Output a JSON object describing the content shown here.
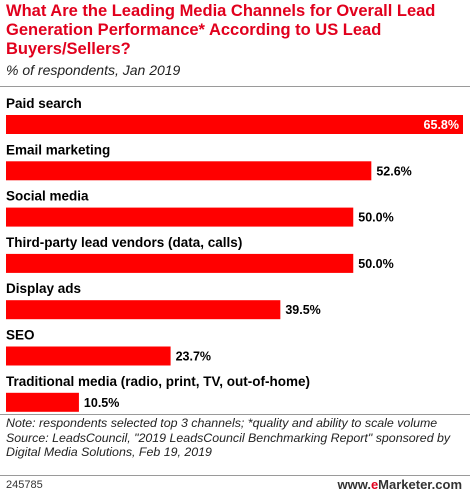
{
  "header": {
    "title": "What Are the Leading Media Channels for Overall Lead Generation Performance* According to US Lead Buyers/Sellers?",
    "subtitle": "% of respondents, Jan 2019"
  },
  "footer": {
    "note": "Note: respondents selected top 3 channels; *quality and ability to scale volume",
    "source": "Source: LeadsCouncil, \"2019 LeadsCouncil Benchmarking Report\" sponsored by Digital Media Solutions, Feb 19, 2019",
    "chart_id": "245785",
    "brand_e": "e",
    "brand_rest": "Marketer",
    "brand_suffix": ".com"
  },
  "colors": {
    "bar": "#ff0000",
    "title": "#e1001d",
    "rule": "#9a9a9a"
  },
  "chart_data": {
    "type": "bar",
    "orientation": "horizontal",
    "title": "What Are the Leading Media Channels for Overall Lead Generation Performance* According to US Lead Buyers/Sellers?",
    "subtitle": "% of respondents, Jan 2019",
    "categories": [
      "Paid search",
      "Email marketing",
      "Social media",
      "Third-party lead vendors (data, calls)",
      "Display ads",
      "SEO",
      "Traditional media (radio, print, TV, out-of-home)"
    ],
    "values": [
      65.8,
      52.6,
      50.0,
      50.0,
      39.5,
      23.7,
      10.5
    ],
    "value_labels": [
      "65.8%",
      "52.6%",
      "50.0%",
      "50.0%",
      "39.5%",
      "23.7%",
      "10.5%"
    ],
    "unit": "%",
    "xlim": [
      0,
      65.8
    ],
    "grid": false,
    "legend": "none"
  }
}
